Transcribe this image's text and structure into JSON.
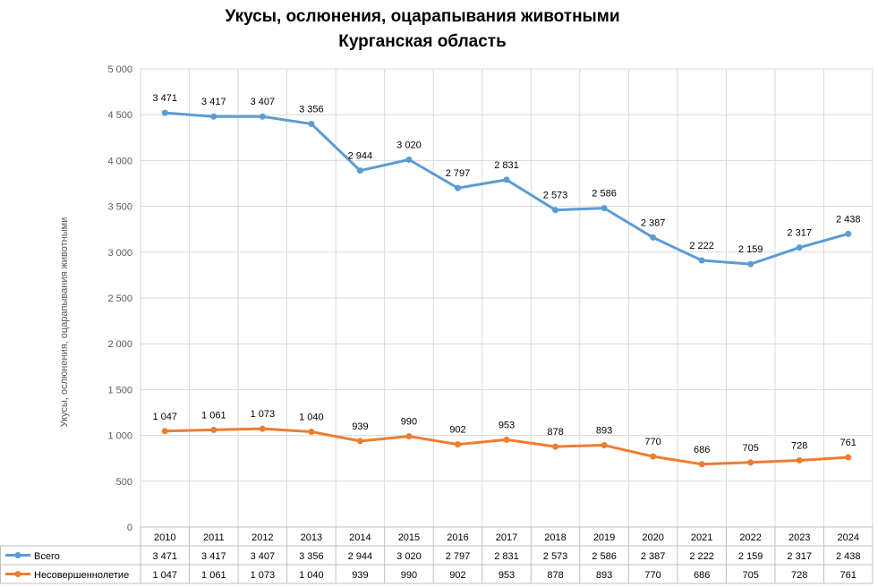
{
  "chart_data": {
    "type": "line",
    "title": [
      "Укусы, ослюнения, оцарапывания животными",
      "Курганская область"
    ],
    "ylabel": "Укусы, ослюнения, оцарапывания животными",
    "xlabel": "",
    "ylim": [
      0,
      5000
    ],
    "y_ticks": [
      "0",
      "500",
      "1 000",
      "1 500",
      "2 000",
      "2 500",
      "3 000",
      "3 500",
      "4 000",
      "4 500",
      "5 000"
    ],
    "grid": "horizontal and vertical",
    "legend": "data table below chart",
    "categories": [
      "2010",
      "2011",
      "2012",
      "2013",
      "2014",
      "2015",
      "2016",
      "2017",
      "2018",
      "2019",
      "2020",
      "2021",
      "2022",
      "2023",
      "2024"
    ],
    "series": [
      {
        "name": "Всего",
        "color": "#5b9bd5",
        "values": [
          4520,
          4480,
          4480,
          4400,
          3890,
          4010,
          3700,
          3790,
          3460,
          3480,
          3160,
          2910,
          2870,
          3050,
          3200
        ],
        "labels": [
          "3 471",
          "3 417",
          "3 407",
          "3 356",
          "2 944",
          "3 020",
          "2 797",
          "2 831",
          "2 573",
          "2 586",
          "2 387",
          "2 222",
          "2 159",
          "2 317",
          "2 438"
        ]
      },
      {
        "name": "Несовершеннолетие",
        "color": "#ed7d31",
        "values": [
          1047,
          1061,
          1073,
          1040,
          939,
          990,
          902,
          953,
          878,
          893,
          770,
          686,
          705,
          728,
          761
        ],
        "labels": [
          "1 047",
          "1 061",
          "1 073",
          "1 040",
          "939",
          "990",
          "902",
          "953",
          "878",
          "893",
          "770",
          "686",
          "705",
          "728",
          "761"
        ]
      }
    ]
  }
}
